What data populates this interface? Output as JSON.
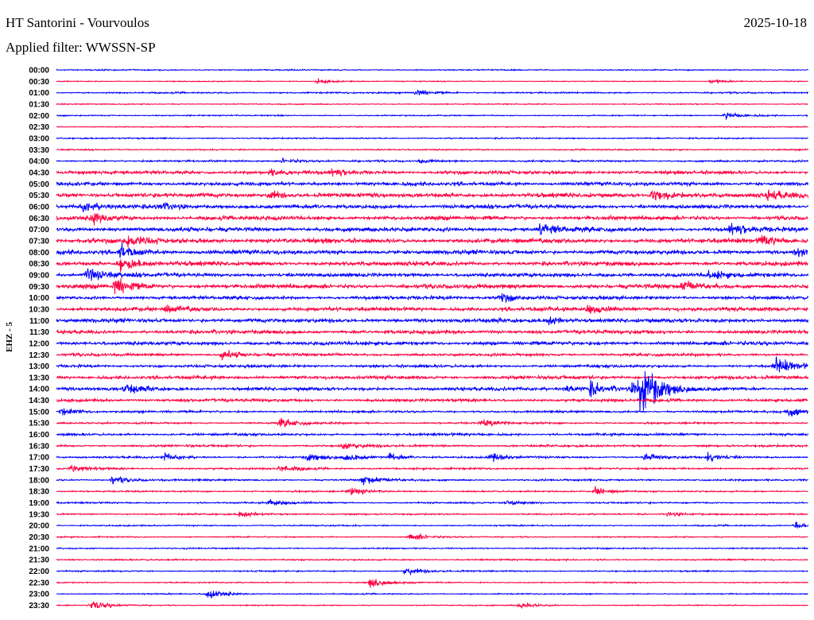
{
  "header": {
    "station": "HT Santorini - Vourvoulos",
    "date": "2025-10-18",
    "filter": "Applied filter: WWSSN-SP"
  },
  "chart_data": {
    "type": "line",
    "title": "HT Santorini - Vourvoulos",
    "channel_label": "EHZ - 5",
    "minutes_per_row": 30,
    "colors": [
      "#0000ff",
      "#ff0040"
    ],
    "rows": [
      "00:00",
      "00:30",
      "01:00",
      "01:30",
      "02:00",
      "02:30",
      "03:00",
      "03:30",
      "04:00",
      "04:30",
      "05:00",
      "05:30",
      "06:00",
      "06:30",
      "07:00",
      "07:30",
      "08:00",
      "08:30",
      "09:00",
      "09:30",
      "10:00",
      "10:30",
      "11:00",
      "11:30",
      "12:00",
      "12:30",
      "13:00",
      "13:30",
      "14:00",
      "14:30",
      "15:00",
      "15:30",
      "16:00",
      "16:30",
      "17:00",
      "17:30",
      "18:00",
      "18:30",
      "19:00",
      "19:30",
      "20:00",
      "20:30",
      "21:00",
      "21:30",
      "22:00",
      "22:30",
      "23:00",
      "23:30"
    ],
    "noise_level": [
      0.8,
      0.6,
      1.0,
      0.7,
      0.8,
      0.7,
      0.9,
      0.9,
      1.2,
      2.2,
      2.4,
      2.8,
      2.6,
      2.6,
      2.8,
      3.0,
      2.8,
      2.8,
      2.6,
      2.8,
      2.2,
      2.6,
      2.6,
      2.4,
      2.4,
      1.8,
      1.8,
      2.2,
      2.2,
      2.0,
      1.4,
      1.2,
      1.6,
      1.4,
      1.2,
      1.2,
      1.2,
      1.0,
      1.0,
      1.0,
      0.9,
      0.8,
      0.9,
      1.0,
      0.9,
      0.8,
      0.8,
      0.7
    ],
    "events": [
      [
        1,
        10.4,
        4
      ],
      [
        1,
        26.1,
        3
      ],
      [
        2,
        14.3,
        6
      ],
      [
        4,
        26.7,
        6
      ],
      [
        8,
        9.0,
        4
      ],
      [
        8,
        14.5,
        3
      ],
      [
        9,
        8.5,
        5
      ],
      [
        9,
        11,
        5
      ],
      [
        11,
        8.5,
        7
      ],
      [
        11,
        23.8,
        12
      ],
      [
        11,
        28.4,
        7
      ],
      [
        12,
        1,
        8
      ],
      [
        12,
        4,
        6
      ],
      [
        13,
        1.4,
        10
      ],
      [
        14,
        19.3,
        10
      ],
      [
        14,
        26.9,
        8
      ],
      [
        15,
        2.8,
        8
      ],
      [
        15,
        28.1,
        8
      ],
      [
        16,
        2.5,
        12
      ],
      [
        16,
        29.5,
        8
      ],
      [
        17,
        2.5,
        12
      ],
      [
        18,
        1.2,
        10
      ],
      [
        18,
        26,
        6
      ],
      [
        19,
        2.3,
        14
      ],
      [
        19,
        25,
        7
      ],
      [
        20,
        17.7,
        8
      ],
      [
        21,
        4.4,
        6
      ],
      [
        21,
        21.2,
        8
      ],
      [
        22,
        19.6,
        7
      ],
      [
        25,
        6.6,
        7
      ],
      [
        26,
        28.7,
        14
      ],
      [
        28,
        2.7,
        8
      ],
      [
        28,
        20.3,
        6
      ],
      [
        28,
        23.3,
        12
      ],
      [
        28,
        23.3,
        10
      ],
      [
        28,
        23.3,
        8
      ],
      [
        28,
        23.3,
        8
      ],
      [
        28,
        23.3,
        8
      ],
      [
        28,
        21.3,
        12
      ],
      [
        28,
        23.0,
        10
      ],
      [
        30,
        0.2,
        6
      ],
      [
        30,
        29.2,
        7
      ],
      [
        31,
        8.9,
        8
      ],
      [
        31,
        17,
        6
      ],
      [
        33,
        11.4,
        6
      ],
      [
        34,
        4.3,
        6
      ],
      [
        34,
        10,
        6
      ],
      [
        34,
        11.5,
        6
      ],
      [
        34,
        13.3,
        6
      ],
      [
        34,
        17.3,
        7
      ],
      [
        34,
        23.5,
        6
      ],
      [
        34,
        26,
        6
      ],
      [
        35,
        0.6,
        6
      ],
      [
        35,
        8.9,
        6
      ],
      [
        36,
        2.2,
        6
      ],
      [
        36,
        12.2,
        7
      ],
      [
        37,
        11.7,
        6
      ],
      [
        37,
        21.5,
        7
      ],
      [
        38,
        8.5,
        6
      ],
      [
        38,
        18,
        5
      ],
      [
        39,
        7.3,
        5
      ],
      [
        39,
        24.4,
        4
      ],
      [
        40,
        29.5,
        6
      ],
      [
        41,
        14.1,
        6
      ],
      [
        44,
        13.9,
        7
      ],
      [
        45,
        12.5,
        8
      ],
      [
        46,
        6.0,
        9
      ],
      [
        47,
        1.4,
        8
      ],
      [
        47,
        18.5,
        5
      ]
    ]
  }
}
